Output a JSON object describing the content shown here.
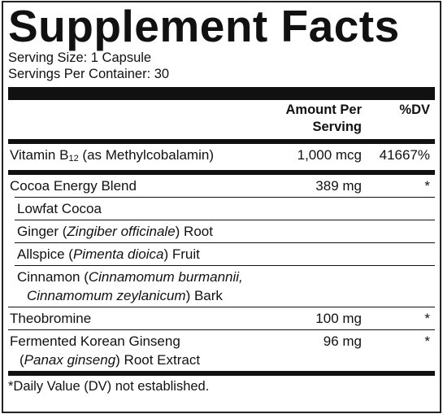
{
  "title": "Supplement Facts",
  "serving_size": "Serving Size: 1 Capsule",
  "servings_per_container": "Servings Per Container: 30",
  "header": {
    "amount": "Amount Per Serving",
    "dv": "%DV"
  },
  "rows": [
    {
      "name": [
        [
          {
            "roman": "Vitamin B"
          },
          {
            "sub": "12"
          },
          {
            "roman": " (as Methylcobalamin)"
          }
        ]
      ],
      "amount": "1,000 mcg",
      "dv": "41667%"
    },
    {
      "name": [
        [
          {
            "roman": "Cocoa Energy Blend"
          }
        ]
      ],
      "amount": "389 mg",
      "dv": "*",
      "components": [
        {
          "name": [
            [
              {
                "roman": "Lowfat Cocoa"
              }
            ]
          ]
        },
        {
          "name": [
            [
              {
                "roman": "Ginger ("
              },
              {
                "italic": "Zingiber officinale"
              },
              {
                "roman": ") Root"
              }
            ]
          ]
        },
        {
          "name": [
            [
              {
                "roman": "Allspice ("
              },
              {
                "italic": "Pimenta dioica"
              },
              {
                "roman": ") Fruit"
              }
            ]
          ]
        },
        {
          "name": [
            [
              {
                "roman": "Cinnamon ("
              },
              {
                "italic": "Cinnamomum burmannii,"
              }
            ],
            [
              {
                "italic": "Cinnamomum zeylanicum"
              },
              {
                "roman": ") Bark"
              }
            ]
          ]
        }
      ]
    },
    {
      "name": [
        [
          {
            "roman": "Theobromine"
          }
        ]
      ],
      "amount": "100 mg",
      "dv": "*"
    },
    {
      "name": [
        [
          {
            "roman": "Fermented Korean Ginseng"
          }
        ],
        [
          {
            "roman": "("
          },
          {
            "italic": "Panax ginseng"
          },
          {
            "roman": ") Root Extract"
          }
        ]
      ],
      "amount": "96 mg",
      "dv": "*"
    }
  ],
  "footnote": "*Daily Value (DV) not established."
}
